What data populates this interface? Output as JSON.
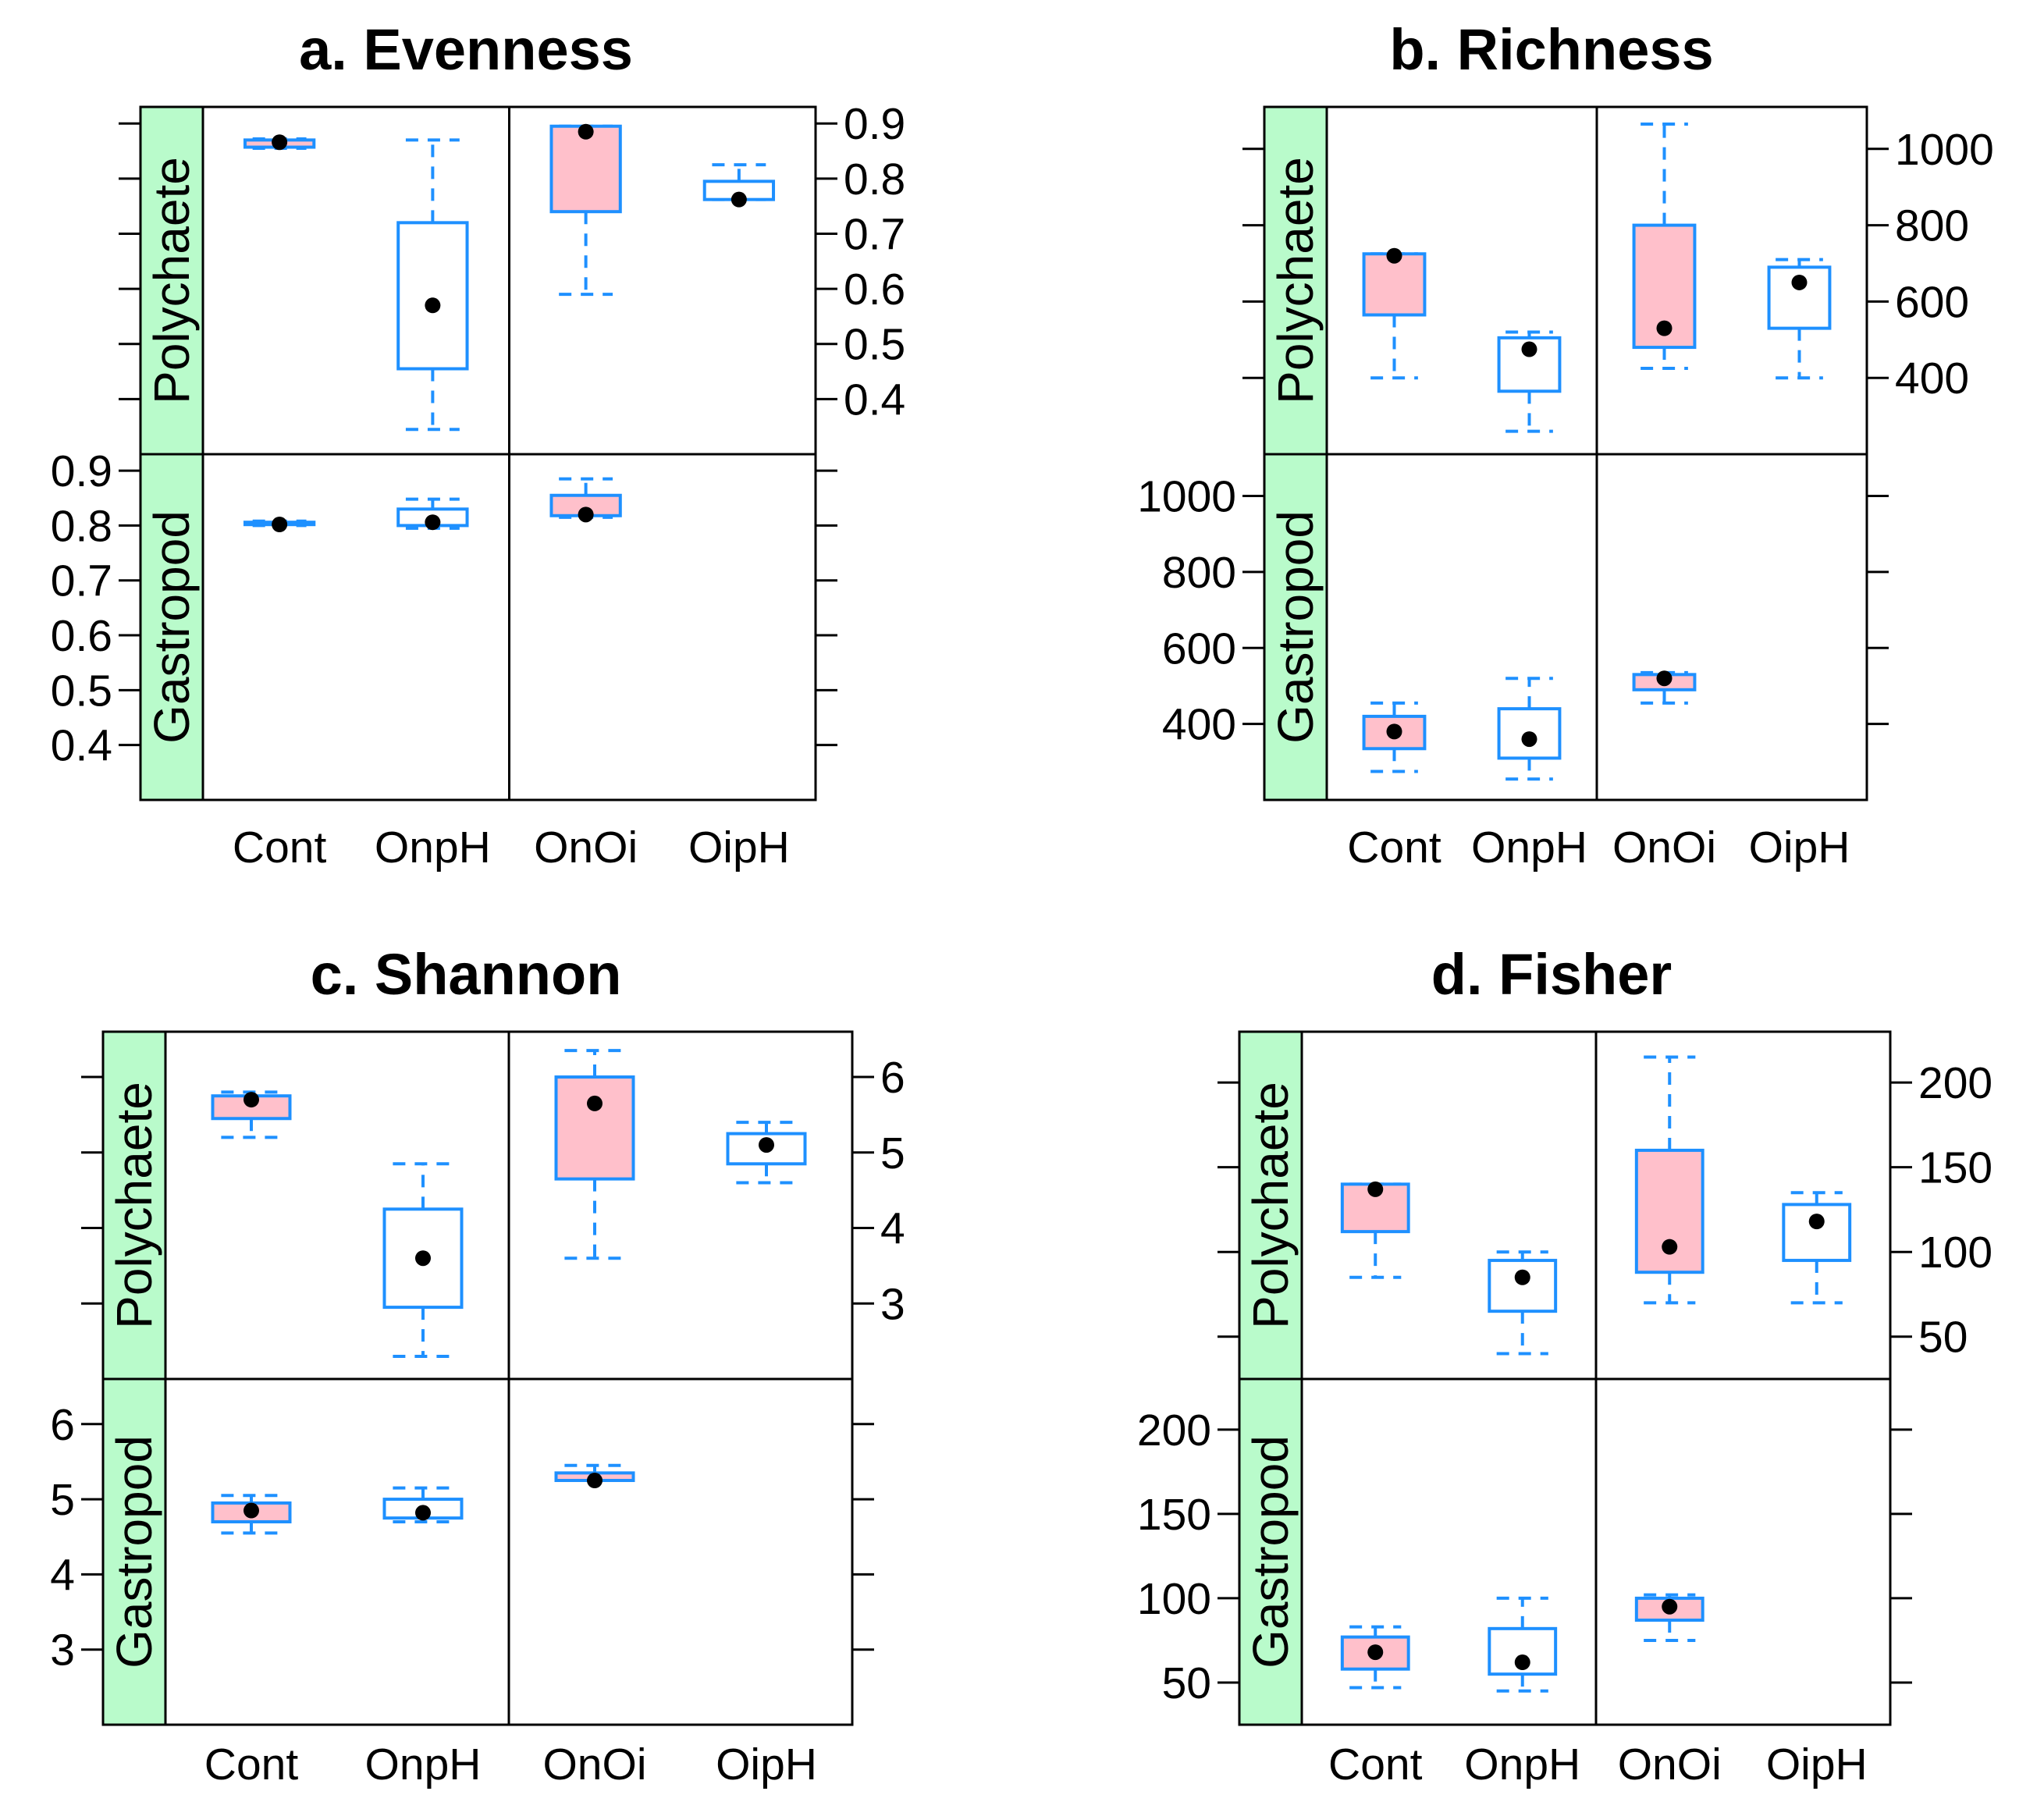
{
  "figure": {
    "colors": {
      "strip_bg": "#b9fbcb",
      "box_line": "#1e90ff",
      "highlight_fill": "#ffc0cb",
      "median_dot": "#000000",
      "frame": "#000000"
    }
  },
  "chart_data": [
    {
      "id": "a",
      "type": "boxplot",
      "title": "a. Evenness",
      "categories": [
        "Cont",
        "OnpH",
        "OnOi",
        "OipH"
      ],
      "rows": [
        "Polychaete",
        "Gastropod"
      ],
      "ylim": [
        0.3,
        0.93
      ],
      "yticks": [
        0.4,
        0.5,
        0.6,
        0.7,
        0.8,
        0.9
      ],
      "yticklabels": [
        "0.4",
        "0.5",
        "0.6",
        "0.7",
        "0.8",
        "0.9"
      ],
      "grid": false,
      "series": [
        {
          "name": "Polychaete",
          "boxes": [
            {
              "category": "Cont",
              "lower_whisker": 0.855,
              "q1": 0.857,
              "median": 0.866,
              "q3": 0.87,
              "upper_whisker": 0.872,
              "highlight": true
            },
            {
              "category": "OnpH",
              "lower_whisker": 0.345,
              "q1": 0.455,
              "median": 0.57,
              "q3": 0.72,
              "upper_whisker": 0.87,
              "highlight": false
            },
            {
              "category": "OnOi",
              "lower_whisker": 0.59,
              "q1": 0.74,
              "median": 0.885,
              "q3": 0.895,
              "upper_whisker": 0.895,
              "highlight": true
            },
            {
              "category": "OipH",
              "lower_whisker": 0.762,
              "q1": 0.762,
              "median": 0.762,
              "q3": 0.795,
              "upper_whisker": 0.825,
              "highlight": false
            }
          ]
        },
        {
          "name": "Gastropod",
          "boxes": [
            {
              "category": "Cont",
              "lower_whisker": 0.8,
              "q1": 0.802,
              "median": 0.802,
              "q3": 0.806,
              "upper_whisker": 0.808,
              "highlight": true
            },
            {
              "category": "OnpH",
              "lower_whisker": 0.795,
              "q1": 0.8,
              "median": 0.806,
              "q3": 0.83,
              "upper_whisker": 0.848,
              "highlight": false
            },
            {
              "category": "OnOi",
              "lower_whisker": 0.815,
              "q1": 0.818,
              "median": 0.82,
              "q3": 0.855,
              "upper_whisker": 0.885,
              "highlight": true
            }
          ]
        }
      ]
    },
    {
      "id": "b",
      "type": "boxplot",
      "title": "b. Richness",
      "categories": [
        "Cont",
        "OnpH",
        "OnOi",
        "OipH"
      ],
      "rows": [
        "Polychaete",
        "Gastropod"
      ],
      "ylim": [
        200,
        1110
      ],
      "yticks": [
        400,
        600,
        800,
        1000
      ],
      "yticklabels": [
        "400",
        "600",
        "800",
        "1000"
      ],
      "grid": false,
      "series": [
        {
          "name": "Polychaete",
          "boxes": [
            {
              "category": "Cont",
              "lower_whisker": 400,
              "q1": 565,
              "median": 720,
              "q3": 725,
              "upper_whisker": 725,
              "highlight": true
            },
            {
              "category": "OnpH",
              "lower_whisker": 260,
              "q1": 365,
              "median": 475,
              "q3": 505,
              "upper_whisker": 520,
              "highlight": false
            },
            {
              "category": "OnOi",
              "lower_whisker": 425,
              "q1": 480,
              "median": 530,
              "q3": 800,
              "upper_whisker": 1065,
              "highlight": true
            },
            {
              "category": "OipH",
              "lower_whisker": 400,
              "q1": 530,
              "median": 650,
              "q3": 690,
              "upper_whisker": 710,
              "highlight": false
            }
          ]
        },
        {
          "name": "Gastropod",
          "boxes": [
            {
              "category": "Cont",
              "lower_whisker": 275,
              "q1": 335,
              "median": 380,
              "q3": 420,
              "upper_whisker": 455,
              "highlight": true
            },
            {
              "category": "OnpH",
              "lower_whisker": 255,
              "q1": 310,
              "median": 360,
              "q3": 440,
              "upper_whisker": 520,
              "highlight": false
            },
            {
              "category": "OnOi",
              "lower_whisker": 455,
              "q1": 490,
              "median": 520,
              "q3": 530,
              "upper_whisker": 535,
              "highlight": true
            }
          ]
        }
      ]
    },
    {
      "id": "c",
      "type": "boxplot",
      "title": "c. Shannon",
      "categories": [
        "Cont",
        "OnpH",
        "OnOi",
        "OipH"
      ],
      "rows": [
        "Polychaete",
        "Gastropod"
      ],
      "ylim": [
        2,
        6.6
      ],
      "yticks": [
        3,
        4,
        5,
        6
      ],
      "yticklabels": [
        "3",
        "4",
        "5",
        "6"
      ],
      "grid": false,
      "series": [
        {
          "name": "Polychaete",
          "boxes": [
            {
              "category": "Cont",
              "lower_whisker": 5.2,
              "q1": 5.45,
              "median": 5.7,
              "q3": 5.75,
              "upper_whisker": 5.8,
              "highlight": true
            },
            {
              "category": "OnpH",
              "lower_whisker": 2.3,
              "q1": 2.95,
              "median": 3.6,
              "q3": 4.25,
              "upper_whisker": 4.85,
              "highlight": false
            },
            {
              "category": "OnOi",
              "lower_whisker": 3.6,
              "q1": 4.65,
              "median": 5.65,
              "q3": 6.0,
              "upper_whisker": 6.35,
              "highlight": true
            },
            {
              "category": "OipH",
              "lower_whisker": 4.6,
              "q1": 4.85,
              "median": 5.1,
              "q3": 5.25,
              "upper_whisker": 5.4,
              "highlight": false
            }
          ]
        },
        {
          "name": "Gastropod",
          "boxes": [
            {
              "category": "Cont",
              "lower_whisker": 4.55,
              "q1": 4.7,
              "median": 4.85,
              "q3": 4.95,
              "upper_whisker": 5.05,
              "highlight": true
            },
            {
              "category": "OnpH",
              "lower_whisker": 4.7,
              "q1": 4.75,
              "median": 4.82,
              "q3": 5.0,
              "upper_whisker": 5.15,
              "highlight": false
            },
            {
              "category": "OnOi",
              "lower_whisker": 5.25,
              "q1": 5.25,
              "median": 5.25,
              "q3": 5.35,
              "upper_whisker": 5.45,
              "highlight": true
            }
          ]
        }
      ]
    },
    {
      "id": "d",
      "type": "boxplot",
      "title": "d. Fisher",
      "categories": [
        "Cont",
        "OnpH",
        "OnOi",
        "OipH"
      ],
      "rows": [
        "Polychaete",
        "Gastropod"
      ],
      "ylim": [
        25,
        230
      ],
      "yticks": [
        50,
        100,
        150,
        200
      ],
      "yticklabels": [
        "50",
        "100",
        "150",
        "200"
      ],
      "grid": false,
      "series": [
        {
          "name": "Polychaete",
          "boxes": [
            {
              "category": "Cont",
              "lower_whisker": 85,
              "q1": 112,
              "median": 137,
              "q3": 140,
              "upper_whisker": 140,
              "highlight": true
            },
            {
              "category": "OnpH",
              "lower_whisker": 40,
              "q1": 65,
              "median": 85,
              "q3": 95,
              "upper_whisker": 100,
              "highlight": false
            },
            {
              "category": "OnOi",
              "lower_whisker": 70,
              "q1": 88,
              "median": 103,
              "q3": 160,
              "upper_whisker": 215,
              "highlight": true
            },
            {
              "category": "OipH",
              "lower_whisker": 70,
              "q1": 95,
              "median": 118,
              "q3": 128,
              "upper_whisker": 135,
              "highlight": false
            }
          ]
        },
        {
          "name": "Gastropod",
          "boxes": [
            {
              "category": "Cont",
              "lower_whisker": 47,
              "q1": 58,
              "median": 68,
              "q3": 77,
              "upper_whisker": 83,
              "highlight": true
            },
            {
              "category": "OnpH",
              "lower_whisker": 45,
              "q1": 55,
              "median": 62,
              "q3": 82,
              "upper_whisker": 100,
              "highlight": false
            },
            {
              "category": "OnOi",
              "lower_whisker": 75,
              "q1": 87,
              "median": 95,
              "q3": 100,
              "upper_whisker": 102,
              "highlight": true
            }
          ]
        }
      ]
    }
  ]
}
